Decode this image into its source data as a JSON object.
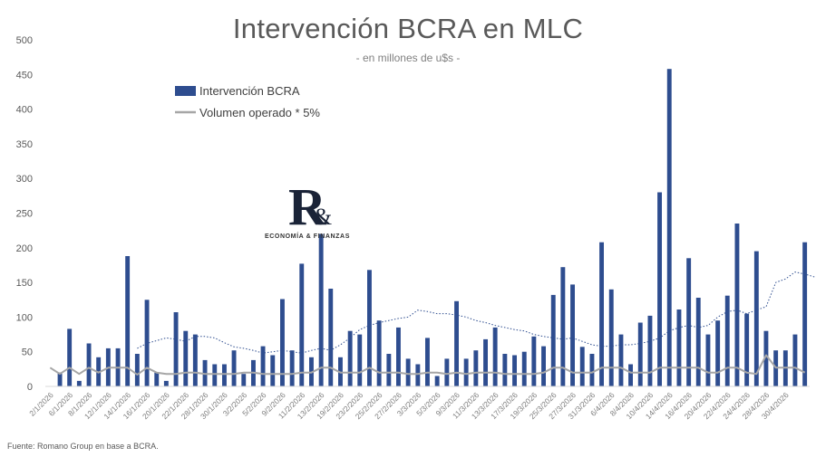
{
  "chart_data": {
    "type": "bar",
    "title": "Intervención BCRA en MLC",
    "subtitle": "- en millones de u$s -",
    "source": "Fuente: Romano Group en base a BCRA.",
    "ylim": [
      0,
      500
    ],
    "yticks": [
      "0",
      "50",
      "100",
      "150",
      "200",
      "250",
      "300",
      "350",
      "400",
      "450",
      "500"
    ],
    "grid": false,
    "legend_position": "top-left",
    "colors": {
      "bar": "#2e4d8f",
      "volume": "#a6a6a6",
      "trend": "#2e4d8f"
    },
    "x_tick_labels": [
      "2/1/2026",
      "6/1/2026",
      "8/1/2026",
      "12/1/2026",
      "14/1/2026",
      "16/1/2026",
      "20/1/2026",
      "22/1/2026",
      "28/1/2026",
      "30/1/2026",
      "3/2/2026",
      "5/2/2026",
      "9/2/2026",
      "11/2/2026",
      "13/2/2026",
      "19/2/2026",
      "23/2/2026",
      "25/2/2026",
      "27/2/2026",
      "3/3/2026",
      "5/3/2026",
      "9/3/2026",
      "11/3/2026",
      "13/3/2026",
      "17/3/2026",
      "19/3/2026",
      "25/3/2026",
      "27/3/2026",
      "31/3/2026",
      "6/4/2026",
      "8/4/2026",
      "10/4/2026",
      "14/4/2026",
      "16/4/2026",
      "20/4/2026",
      "22/4/2026",
      "24/4/2026",
      "28/4/2026",
      "30/4/2026"
    ],
    "x_tick_every": 2,
    "series": [
      {
        "name": "Intervención BCRA",
        "type": "bar",
        "values": [
          0,
          20,
          83,
          8,
          62,
          42,
          55,
          55,
          188,
          47,
          125,
          20,
          8,
          107,
          80,
          75,
          38,
          32,
          32,
          52,
          18,
          38,
          58,
          45,
          126,
          52,
          177,
          42,
          220,
          141,
          42,
          80,
          75,
          168,
          95,
          47,
          85,
          40,
          32,
          70,
          15,
          40,
          123,
          40,
          52,
          68,
          85,
          47,
          45,
          50,
          72,
          58,
          132,
          172,
          147,
          57,
          47,
          208,
          140,
          75,
          32,
          92,
          102,
          280,
          458,
          111,
          185,
          128,
          75,
          95,
          131,
          235,
          105,
          195,
          80,
          52,
          52,
          75,
          208
        ]
      },
      {
        "name": "Volumen operado * 5%",
        "type": "line",
        "values": [
          27,
          18,
          27,
          18,
          27,
          20,
          27,
          27,
          27,
          17,
          27,
          20,
          18,
          18,
          20,
          20,
          18,
          18,
          18,
          18,
          20,
          20,
          18,
          18,
          18,
          18,
          20,
          20,
          27,
          27,
          20,
          20,
          20,
          27,
          20,
          20,
          20,
          18,
          18,
          20,
          20,
          18,
          20,
          18,
          20,
          20,
          20,
          18,
          18,
          18,
          18,
          20,
          27,
          27,
          20,
          20,
          20,
          27,
          27,
          27,
          20,
          20,
          20,
          27,
          27,
          27,
          27,
          27,
          20,
          20,
          27,
          27,
          20,
          18,
          45,
          27,
          27,
          27,
          20
        ]
      },
      {
        "type": "trend",
        "start_index": 9,
        "values": [
          55,
          62,
          66,
          70,
          68,
          65,
          72,
          72,
          70,
          63,
          57,
          55,
          52,
          48,
          50,
          52,
          50,
          48,
          52,
          55,
          52,
          60,
          70,
          82,
          88,
          92,
          95,
          98,
          100,
          110,
          108,
          105,
          105,
          103,
          100,
          95,
          92,
          88,
          85,
          82,
          80,
          75,
          72,
          70,
          68,
          70,
          65,
          60,
          58,
          58,
          60,
          60,
          62,
          65,
          70,
          80,
          85,
          88,
          85,
          88,
          100,
          108,
          110,
          105,
          110,
          115,
          150,
          155,
          165,
          162,
          158,
          155,
          160,
          165,
          178,
          180,
          170,
          135,
          125,
          115,
          110,
          120
        ]
      }
    ]
  },
  "logo": {
    "mark": "R",
    "amp": "&",
    "text": "ECONOMÍA & FINANZAS"
  }
}
